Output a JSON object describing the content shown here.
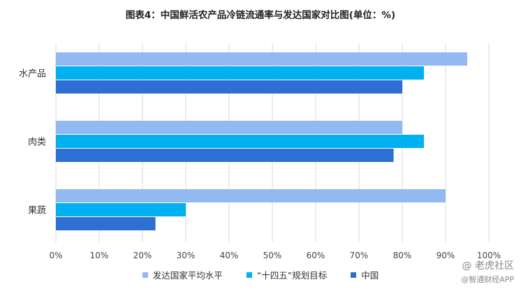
{
  "chart_data": {
    "type": "bar",
    "orientation": "horizontal",
    "title": "图表4：中国鲜活农产品冷链流通率与发达国家对比图(单位：%)",
    "categories": [
      "水产品",
      "肉类",
      "果蔬"
    ],
    "series": [
      {
        "name": "发达国家平均水平",
        "values": [
          95,
          80,
          90
        ],
        "color": "#92b9f1"
      },
      {
        "name": "“十四五”规划目标",
        "values": [
          85,
          85,
          30
        ],
        "color": "#00b0f0"
      },
      {
        "name": "中国",
        "values": [
          80,
          78,
          23
        ],
        "color": "#2e6fd4"
      }
    ],
    "xlim": [
      0,
      100
    ],
    "xticks": [
      0,
      10,
      20,
      30,
      40,
      50,
      60,
      70,
      80,
      90,
      100
    ],
    "tick_labels": [
      "0%",
      "10%",
      "20%",
      "30%",
      "40%",
      "50%",
      "60%",
      "70%",
      "80%",
      "90%",
      "100%"
    ],
    "grid": true,
    "legend_position": "bottom"
  },
  "watermark": {
    "line1": "@ 老虎社区",
    "line2": "@智通财经APP"
  }
}
